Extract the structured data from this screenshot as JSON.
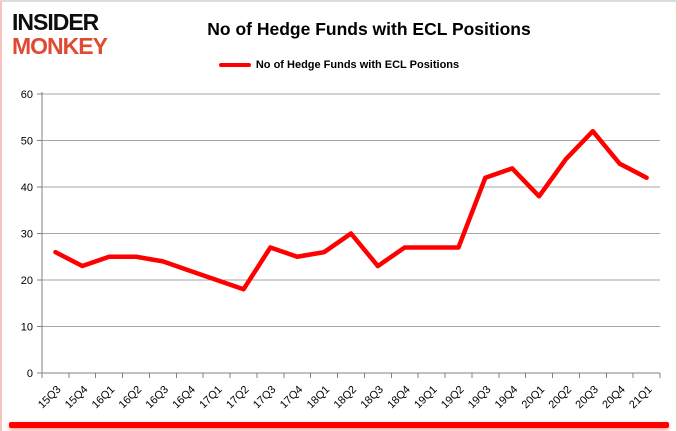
{
  "branding": {
    "logo_line1": "INSIDER",
    "logo_line2": "MONKEY",
    "logo_color_primary": "#0d0d0d",
    "logo_color_secondary": "#df4a32"
  },
  "header": {
    "title": "No of Hedge Funds with ECL Positions"
  },
  "legend": {
    "label": "No of Hedge Funds with ECL Positions",
    "swatch_color": "#ff0000"
  },
  "chart_data": {
    "type": "line",
    "title": "No of Hedge Funds with ECL Positions",
    "categories": [
      "15Q3",
      "15Q4",
      "16Q1",
      "16Q2",
      "16Q3",
      "16Q4",
      "17Q1",
      "17Q2",
      "17Q3",
      "17Q4",
      "18Q1",
      "18Q2",
      "18Q3",
      "18Q4",
      "19Q1",
      "19Q2",
      "19Q3",
      "19Q4",
      "20Q1",
      "20Q2",
      "20Q3",
      "20Q4",
      "21Q1"
    ],
    "series": [
      {
        "name": "No of Hedge Funds with ECL Positions",
        "color": "#ff0000",
        "values": [
          26,
          23,
          25,
          25,
          24,
          22,
          20,
          18,
          27,
          25,
          26,
          30,
          23,
          27,
          27,
          27,
          42,
          44,
          38,
          46,
          52,
          45,
          42
        ]
      }
    ],
    "xlabel": "",
    "ylabel": "",
    "ylim": [
      0,
      60
    ],
    "yticks": [
      0,
      10,
      20,
      30,
      40,
      50,
      60
    ],
    "grid": true,
    "legend_position": "top",
    "colors": {
      "gridline": "#a6a6a6",
      "axis": "#808080",
      "line": "#ff0000"
    }
  }
}
